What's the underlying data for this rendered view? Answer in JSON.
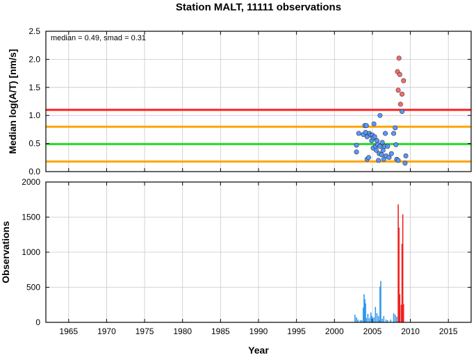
{
  "chart_data": [
    {
      "type": "scatter",
      "title": "Station MALT, 11111 observations",
      "xlabel": "",
      "ylabel": "Median log(A/T) [nm/s]",
      "annotation": "median = 0.49, smad = 0.31",
      "xlim": [
        1962,
        2018
      ],
      "ylim": [
        0,
        2.5
      ],
      "yticks": [
        "0.0",
        "0.5",
        "1.0",
        "1.5",
        "2.0",
        "2.5"
      ],
      "grid": true,
      "reference_lines": [
        {
          "value": 1.1,
          "color": "#ff2020"
        },
        {
          "value": 0.8,
          "color": "#ffa500"
        },
        {
          "value": 0.49,
          "color": "#22dd22"
        },
        {
          "value": 0.18,
          "color": "#ffa500"
        }
      ],
      "series": [
        {
          "color": "#5599ff",
          "points": [
            [
              2002.9,
              0.35
            ],
            [
              2002.9,
              0.47
            ],
            [
              2003.2,
              0.68
            ],
            [
              2003.8,
              0.66
            ],
            [
              2004.0,
              0.82
            ],
            [
              2004.1,
              0.7
            ],
            [
              2004.2,
              0.82
            ],
            [
              2004.3,
              0.62
            ],
            [
              2004.3,
              0.22
            ],
            [
              2004.5,
              0.25
            ],
            [
              2004.6,
              0.68
            ],
            [
              2004.8,
              0.65
            ],
            [
              2004.9,
              0.55
            ],
            [
              2005.0,
              0.65
            ],
            [
              2005.1,
              0.6
            ],
            [
              2005.1,
              0.42
            ],
            [
              2005.2,
              0.85
            ],
            [
              2005.3,
              0.62
            ],
            [
              2005.4,
              0.45
            ],
            [
              2005.5,
              0.38
            ],
            [
              2005.6,
              0.55
            ],
            [
              2005.7,
              0.48
            ],
            [
              2005.8,
              0.2
            ],
            [
              2005.9,
              0.32
            ],
            [
              2006.0,
              0.45
            ],
            [
              2006.0,
              1.0
            ],
            [
              2006.2,
              0.3
            ],
            [
              2006.3,
              0.52
            ],
            [
              2006.4,
              0.38
            ],
            [
              2006.5,
              0.22
            ],
            [
              2006.6,
              0.45
            ],
            [
              2006.7,
              0.68
            ],
            [
              2006.8,
              0.28
            ],
            [
              2007.0,
              0.45
            ],
            [
              2007.2,
              0.25
            ],
            [
              2007.5,
              0.32
            ],
            [
              2007.8,
              0.68
            ],
            [
              2008.0,
              0.78
            ],
            [
              2008.1,
              0.48
            ],
            [
              2008.2,
              0.22
            ],
            [
              2008.4,
              0.2
            ],
            [
              2008.9,
              1.07
            ],
            [
              2009.3,
              0.15
            ],
            [
              2009.4,
              0.28
            ]
          ]
        },
        {
          "color": "#ff6a6a",
          "points": [
            [
              2008.3,
              1.78
            ],
            [
              2008.5,
              2.02
            ],
            [
              2008.6,
              1.73
            ],
            [
              2008.4,
              1.45
            ],
            [
              2008.7,
              1.2
            ],
            [
              2008.9,
              1.38
            ],
            [
              2009.1,
              1.62
            ]
          ]
        }
      ]
    },
    {
      "type": "bar",
      "title": "",
      "xlabel": "Year",
      "ylabel": "Observations",
      "xlim": [
        1962,
        2018
      ],
      "ylim": [
        0,
        2000
      ],
      "xticks": [
        "1965",
        "1970",
        "1975",
        "1980",
        "1985",
        "1990",
        "1995",
        "2000",
        "2005",
        "2010",
        "2015"
      ],
      "yticks": [
        "0",
        "500",
        "1000",
        "1500",
        "2000"
      ],
      "grid": true,
      "series": [
        {
          "color": "#3399ee",
          "points": [
            [
              2002.7,
              110
            ],
            [
              2002.9,
              70
            ],
            [
              2003.1,
              40
            ],
            [
              2003.4,
              30
            ],
            [
              2003.6,
              30
            ],
            [
              2003.8,
              210
            ],
            [
              2003.9,
              400
            ],
            [
              2004.0,
              330
            ],
            [
              2004.1,
              270
            ],
            [
              2004.2,
              60
            ],
            [
              2004.4,
              120
            ],
            [
              2004.6,
              60
            ],
            [
              2004.8,
              140
            ],
            [
              2004.9,
              90
            ],
            [
              2005.0,
              70
            ],
            [
              2005.2,
              70
            ],
            [
              2005.4,
              220
            ],
            [
              2005.6,
              130
            ],
            [
              2005.8,
              90
            ],
            [
              2005.9,
              30
            ],
            [
              2006.0,
              510
            ],
            [
              2006.1,
              590
            ],
            [
              2006.3,
              50
            ],
            [
              2006.5,
              90
            ],
            [
              2006.8,
              40
            ],
            [
              2007.0,
              30
            ],
            [
              2007.4,
              40
            ],
            [
              2007.8,
              130
            ],
            [
              2008.0,
              110
            ],
            [
              2008.2,
              80
            ]
          ]
        },
        {
          "color": "#ee2222",
          "points": [
            [
              2008.4,
              1680
            ],
            [
              2008.5,
              1350
            ],
            [
              2008.6,
              400
            ],
            [
              2008.8,
              250
            ],
            [
              2008.9,
              1120
            ],
            [
              2009.0,
              1540
            ],
            [
              2009.1,
              260
            ]
          ]
        }
      ]
    }
  ]
}
